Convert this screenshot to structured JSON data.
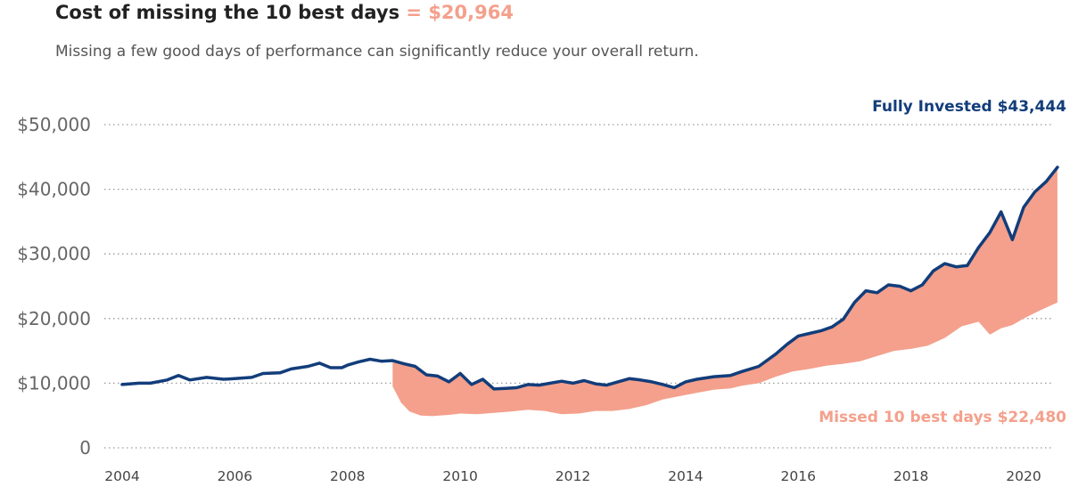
{
  "header": {
    "title": "Cost of missing the 10 best days",
    "title_highlight": "= $20,964",
    "subtitle": "Missing a few good days of performance can significantly reduce your overall return."
  },
  "colors": {
    "fully_invested": "#123d7a",
    "missed": "#f4a08c",
    "gridline": "#9a9a9a"
  },
  "chart_data": {
    "type": "area",
    "title": "Cost of missing the 10 best days",
    "xlabel": "",
    "ylabel": "",
    "xlim": [
      2003.8,
      2020.6
    ],
    "ylim": [
      0,
      50000
    ],
    "grid": true,
    "y_ticks": [
      0,
      10000,
      20000,
      30000,
      40000,
      50000
    ],
    "y_tick_labels": [
      "0",
      "$10,000",
      "$20,000",
      "$30,000",
      "$40,000",
      "$50,000"
    ],
    "x_ticks": [
      2004,
      2006,
      2008,
      2010,
      2012,
      2014,
      2016,
      2018,
      2020
    ],
    "x_tick_labels": [
      "2004",
      "2006",
      "2008",
      "2010",
      "2012",
      "2014",
      "2016",
      "2018",
      "2020"
    ],
    "annotations": {
      "fully_invested": "Fully Invested $43,444",
      "missed": "Missed 10 best days $22,480"
    },
    "series": [
      {
        "name": "Fully Invested",
        "points": [
          [
            2004.0,
            9800
          ],
          [
            2004.3,
            10000
          ],
          [
            2004.5,
            10000
          ],
          [
            2004.8,
            10500
          ],
          [
            2005.0,
            11200
          ],
          [
            2005.2,
            10500
          ],
          [
            2005.5,
            10900
          ],
          [
            2005.8,
            10600
          ],
          [
            2006.0,
            10700
          ],
          [
            2006.3,
            10900
          ],
          [
            2006.5,
            11500
          ],
          [
            2006.8,
            11600
          ],
          [
            2007.0,
            12200
          ],
          [
            2007.3,
            12600
          ],
          [
            2007.5,
            13100
          ],
          [
            2007.7,
            12400
          ],
          [
            2007.9,
            12400
          ],
          [
            2008.0,
            12800
          ],
          [
            2008.2,
            13300
          ],
          [
            2008.4,
            13700
          ],
          [
            2008.6,
            13400
          ],
          [
            2008.8,
            13500
          ],
          [
            2009.0,
            13000
          ],
          [
            2009.2,
            12600
          ],
          [
            2009.4,
            11300
          ],
          [
            2009.6,
            11100
          ],
          [
            2009.8,
            10200
          ],
          [
            2010.0,
            11500
          ],
          [
            2010.2,
            9800
          ],
          [
            2010.4,
            10600
          ],
          [
            2010.6,
            9100
          ],
          [
            2010.8,
            9200
          ],
          [
            2011.0,
            9300
          ],
          [
            2011.2,
            9800
          ],
          [
            2011.4,
            9700
          ],
          [
            2011.6,
            10000
          ],
          [
            2011.8,
            10300
          ],
          [
            2012.0,
            10000
          ],
          [
            2012.2,
            10400
          ],
          [
            2012.4,
            9900
          ],
          [
            2012.6,
            9700
          ],
          [
            2012.8,
            10200
          ],
          [
            2013.0,
            10700
          ],
          [
            2013.2,
            10500
          ],
          [
            2013.4,
            10200
          ],
          [
            2013.6,
            9800
          ],
          [
            2013.8,
            9300
          ],
          [
            2014.0,
            10200
          ],
          [
            2014.2,
            10600
          ],
          [
            2014.5,
            11000
          ],
          [
            2014.8,
            11200
          ],
          [
            2015.0,
            11800
          ],
          [
            2015.3,
            12600
          ],
          [
            2015.6,
            14500
          ],
          [
            2015.8,
            16000
          ],
          [
            2016.0,
            17300
          ],
          [
            2016.2,
            17700
          ],
          [
            2016.4,
            18100
          ],
          [
            2016.6,
            18700
          ],
          [
            2016.8,
            19900
          ],
          [
            2017.0,
            22500
          ],
          [
            2017.2,
            24300
          ],
          [
            2017.4,
            24000
          ],
          [
            2017.6,
            25200
          ],
          [
            2017.8,
            25000
          ],
          [
            2018.0,
            24300
          ],
          [
            2018.2,
            25200
          ],
          [
            2018.4,
            27400
          ],
          [
            2018.6,
            28500
          ],
          [
            2018.8,
            28000
          ],
          [
            2019.0,
            28200
          ],
          [
            2019.2,
            31000
          ],
          [
            2019.4,
            33300
          ],
          [
            2019.6,
            36500
          ],
          [
            2019.8,
            32200
          ],
          [
            2020.0,
            37200
          ],
          [
            2020.2,
            39600
          ],
          [
            2020.4,
            41200
          ],
          [
            2020.6,
            43400
          ]
        ]
      },
      {
        "name": "Missed 10 best days",
        "points": [
          [
            2008.8,
            9500
          ],
          [
            2008.95,
            7000
          ],
          [
            2009.1,
            5600
          ],
          [
            2009.3,
            5000
          ],
          [
            2009.5,
            4900
          ],
          [
            2009.8,
            5100
          ],
          [
            2010.0,
            5300
          ],
          [
            2010.3,
            5200
          ],
          [
            2010.6,
            5400
          ],
          [
            2010.9,
            5600
          ],
          [
            2011.2,
            5900
          ],
          [
            2011.5,
            5700
          ],
          [
            2011.8,
            5200
          ],
          [
            2012.1,
            5300
          ],
          [
            2012.4,
            5700
          ],
          [
            2012.7,
            5700
          ],
          [
            2013.0,
            6000
          ],
          [
            2013.3,
            6600
          ],
          [
            2013.6,
            7500
          ],
          [
            2013.9,
            8000
          ],
          [
            2014.2,
            8500
          ],
          [
            2014.5,
            9000
          ],
          [
            2014.8,
            9200
          ],
          [
            2015.0,
            9600
          ],
          [
            2015.3,
            10000
          ],
          [
            2015.6,
            11000
          ],
          [
            2015.9,
            11800
          ],
          [
            2016.2,
            12200
          ],
          [
            2016.5,
            12700
          ],
          [
            2016.8,
            13000
          ],
          [
            2017.1,
            13400
          ],
          [
            2017.4,
            14200
          ],
          [
            2017.7,
            15000
          ],
          [
            2018.0,
            15300
          ],
          [
            2018.3,
            15800
          ],
          [
            2018.6,
            17000
          ],
          [
            2018.9,
            18800
          ],
          [
            2019.2,
            19500
          ],
          [
            2019.4,
            17500
          ],
          [
            2019.6,
            18500
          ],
          [
            2019.8,
            19000
          ],
          [
            2020.0,
            20000
          ],
          [
            2020.3,
            21300
          ],
          [
            2020.6,
            22480
          ]
        ]
      }
    ]
  }
}
